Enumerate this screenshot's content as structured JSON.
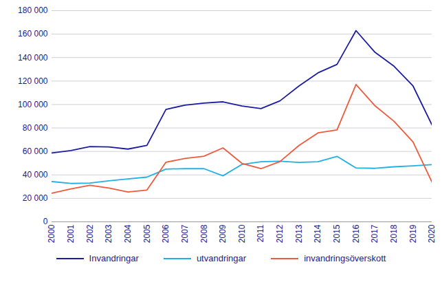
{
  "chart_data": {
    "type": "line",
    "x": [
      2000,
      2001,
      2002,
      2003,
      2004,
      2005,
      2006,
      2007,
      2008,
      2009,
      2010,
      2011,
      2012,
      2013,
      2014,
      2015,
      2016,
      2017,
      2018,
      2019,
      2020
    ],
    "xlim": [
      2000,
      2020
    ],
    "xticks": [
      2000,
      2001,
      2002,
      2003,
      2004,
      2005,
      2006,
      2007,
      2008,
      2009,
      2010,
      2011,
      2012,
      2013,
      2014,
      2015,
      2016,
      2017,
      2018,
      2019,
      2020
    ],
    "ylim": [
      0,
      180000
    ],
    "yticks": [
      0,
      {
        "value": 20000,
        "label": "20 000"
      },
      {
        "value": 40000,
        "label": "40 000"
      },
      {
        "value": 60000,
        "label": "60 000"
      },
      {
        "value": 80000,
        "label": "80 000"
      },
      {
        "value": 100000,
        "label": "100 000"
      },
      {
        "value": 120000,
        "label": "120 000"
      },
      {
        "value": 140000,
        "label": "140 000"
      },
      {
        "value": 160000,
        "label": "160 000"
      },
      {
        "value": 180000,
        "label": "180 000"
      }
    ],
    "grid": true,
    "legend": "bottom",
    "series": [
      {
        "name": "Invandringar",
        "color": "#1c1ca3",
        "values": [
          58700,
          60800,
          64100,
          63800,
          62000,
          65200,
          95800,
          99500,
          101200,
          102300,
          98700,
          96500,
          103100,
          115800,
          127000,
          134200,
          163000,
          144500,
          132600,
          115800,
          82500
        ]
      },
      {
        "name": "utvandringar",
        "color": "#1fb1e6",
        "values": [
          34300,
          32700,
          33000,
          35000,
          36600,
          38100,
          44900,
          45400,
          45300,
          39200,
          48900,
          51200,
          51700,
          50700,
          51200,
          55800,
          45900,
          45600,
          46900,
          47700,
          48800
        ]
      },
      {
        "name": "invandringsöverskott",
        "color": "#ef5a3c",
        "values": [
          24400,
          28100,
          31100,
          28800,
          25400,
          27100,
          50800,
          54000,
          55900,
          63000,
          49800,
          45300,
          51400,
          65100,
          75800,
          78400,
          117100,
          98900,
          85700,
          68100,
          33700
        ]
      }
    ]
  }
}
